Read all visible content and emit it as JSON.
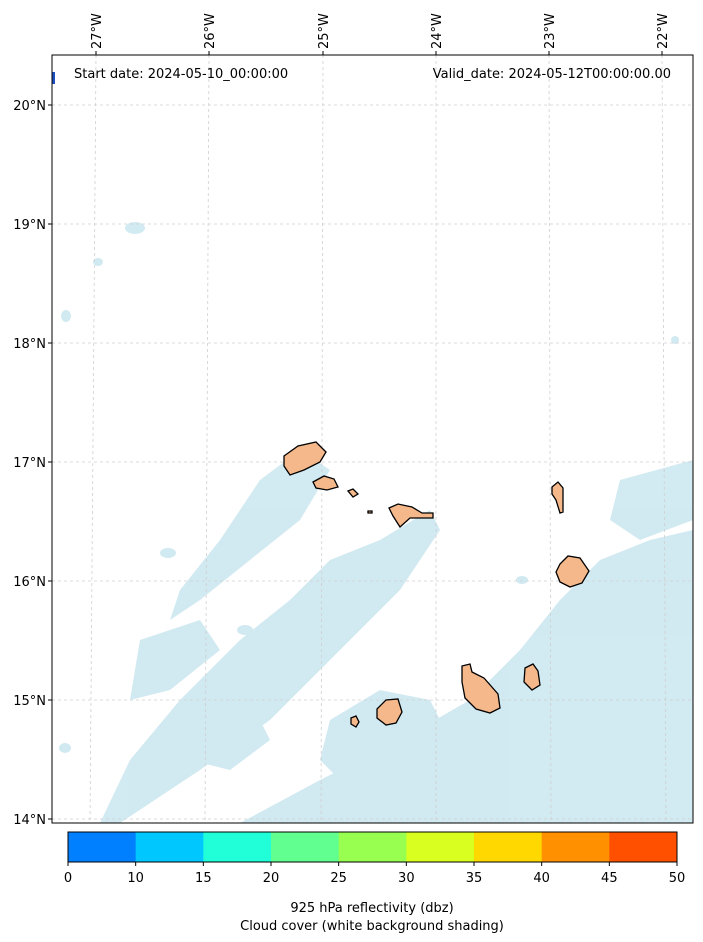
{
  "header": {
    "start_date": "Start date: 2024-05-10_00:00:00",
    "valid_date": "Valid_date: 2024-05-12T00:00:00.00"
  },
  "map": {
    "lon_labels": [
      "27°W",
      "26°W",
      "25°W",
      "24°W",
      "23°W",
      "22°W"
    ],
    "lat_labels": [
      "20°N",
      "19°N",
      "18°N",
      "17°N",
      "16°N",
      "15°N",
      "14°N"
    ],
    "island_color": "#f5b88a",
    "cloud_color": "#add8e6"
  },
  "colorbar": {
    "ticks": [
      "0",
      "10",
      "15",
      "20",
      "25",
      "30",
      "35",
      "40",
      "45",
      "50"
    ],
    "colors": [
      "#0080ff",
      "#00c8ff",
      "#20ffd8",
      "#60ff90",
      "#98ff50",
      "#d8ff20",
      "#ffd800",
      "#ff9000",
      "#ff5000"
    ],
    "title": "925 hPa reflectivity (dbz)",
    "subtitle": "Cloud cover (white background shading)"
  }
}
